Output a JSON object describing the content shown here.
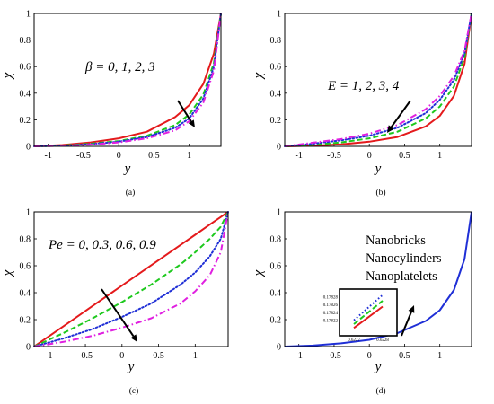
{
  "chart_data": [
    {
      "type": "line",
      "panel_label": "(a)",
      "xlabel": "y",
      "ylabel": "χ",
      "xlim": [
        -1.2,
        1.45
      ],
      "ylim": [
        0,
        1
      ],
      "xticks": [
        -1,
        -0.5,
        0,
        0.5,
        1
      ],
      "yticks": [
        0,
        0.2,
        0.4,
        0.6,
        0.8,
        1
      ],
      "annotation": "β = 0, 1, 2, 3",
      "series": [
        {
          "color": "#e41a1c",
          "dash": "solid",
          "x": [
            -1.2,
            -0.8,
            -0.4,
            0,
            0.4,
            0.8,
            1,
            1.2,
            1.35,
            1.45
          ],
          "y": [
            0,
            0.01,
            0.03,
            0.06,
            0.11,
            0.22,
            0.31,
            0.47,
            0.7,
            1
          ]
        },
        {
          "color": "#1ec91e",
          "dash": "dashed",
          "x": [
            -1.2,
            -0.8,
            -0.4,
            0,
            0.4,
            0.8,
            1,
            1.2,
            1.35,
            1.45
          ],
          "y": [
            0,
            0.006,
            0.02,
            0.04,
            0.08,
            0.16,
            0.24,
            0.39,
            0.63,
            1
          ]
        },
        {
          "color": "#1f2fd6",
          "dash": "dotted",
          "x": [
            -1.2,
            -0.8,
            -0.4,
            0,
            0.4,
            0.8,
            1,
            1.2,
            1.35,
            1.45
          ],
          "y": [
            0,
            0.005,
            0.016,
            0.035,
            0.07,
            0.14,
            0.21,
            0.36,
            0.6,
            1
          ]
        },
        {
          "color": "#e020e0",
          "dash": "dashdot",
          "x": [
            -1.2,
            -0.8,
            -0.4,
            0,
            0.4,
            0.8,
            1,
            1.2,
            1.35,
            1.45
          ],
          "y": [
            0,
            0.004,
            0.013,
            0.03,
            0.06,
            0.12,
            0.19,
            0.33,
            0.57,
            1
          ]
        }
      ]
    },
    {
      "type": "line",
      "panel_label": "(b)",
      "xlabel": "y",
      "ylabel": "χ",
      "xlim": [
        -1.2,
        1.45
      ],
      "ylim": [
        0,
        1
      ],
      "xticks": [
        -1,
        -0.5,
        0,
        0.5,
        1
      ],
      "yticks": [
        0,
        0.2,
        0.4,
        0.6,
        0.8,
        1
      ],
      "annotation": "E = 1, 2, 3, 4",
      "series": [
        {
          "color": "#e41a1c",
          "dash": "solid",
          "x": [
            -1.2,
            -0.8,
            -0.4,
            0,
            0.4,
            0.8,
            1,
            1.2,
            1.35,
            1.45
          ],
          "y": [
            0,
            0.005,
            0.015,
            0.035,
            0.07,
            0.15,
            0.23,
            0.38,
            0.62,
            1
          ]
        },
        {
          "color": "#1ec91e",
          "dash": "dashed",
          "x": [
            -1.2,
            -0.8,
            -0.4,
            0,
            0.4,
            0.8,
            1,
            1.2,
            1.35,
            1.45
          ],
          "y": [
            0,
            0.012,
            0.03,
            0.06,
            0.11,
            0.21,
            0.3,
            0.45,
            0.67,
            1
          ]
        },
        {
          "color": "#1f2fd6",
          "dash": "dotted",
          "x": [
            -1.2,
            -0.8,
            -0.4,
            0,
            0.4,
            0.8,
            1,
            1.2,
            1.35,
            1.45
          ],
          "y": [
            0,
            0.02,
            0.045,
            0.08,
            0.14,
            0.25,
            0.35,
            0.5,
            0.7,
            1
          ]
        },
        {
          "color": "#e020e0",
          "dash": "dashdot",
          "x": [
            -1.2,
            -0.8,
            -0.4,
            0,
            0.4,
            0.8,
            1,
            1.2,
            1.35,
            1.45
          ],
          "y": [
            0,
            0.028,
            0.055,
            0.095,
            0.16,
            0.28,
            0.38,
            0.53,
            0.72,
            1
          ]
        }
      ]
    },
    {
      "type": "line",
      "panel_label": "(c)",
      "xlabel": "y",
      "ylabel": "χ",
      "xlim": [
        -1.2,
        1.45
      ],
      "ylim": [
        0,
        1
      ],
      "xticks": [
        -1,
        -0.5,
        0,
        0.5,
        1
      ],
      "yticks": [
        0,
        0.2,
        0.4,
        0.6,
        0.8,
        1
      ],
      "annotation": "Pe = 0, 0.3, 0.6, 0.9",
      "series": [
        {
          "color": "#e41a1c",
          "dash": "solid",
          "x": [
            -1.2,
            -0.8,
            -0.4,
            0,
            0.4,
            0.8,
            1,
            1.2,
            1.35,
            1.45
          ],
          "y": [
            0,
            0.151,
            0.302,
            0.453,
            0.604,
            0.755,
            0.83,
            0.906,
            0.962,
            1
          ]
        },
        {
          "color": "#1ec91e",
          "dash": "dashed",
          "x": [
            -1.2,
            -0.8,
            -0.4,
            0,
            0.4,
            0.8,
            1,
            1.2,
            1.35,
            1.45
          ],
          "y": [
            0,
            0.1,
            0.21,
            0.33,
            0.46,
            0.61,
            0.7,
            0.8,
            0.89,
            1
          ]
        },
        {
          "color": "#1f2fd6",
          "dash": "dotted",
          "x": [
            -1.2,
            -0.8,
            -0.4,
            0,
            0.4,
            0.8,
            1,
            1.2,
            1.35,
            1.45
          ],
          "y": [
            0,
            0.06,
            0.13,
            0.22,
            0.32,
            0.46,
            0.55,
            0.67,
            0.8,
            1
          ]
        },
        {
          "color": "#e020e0",
          "dash": "dashdot",
          "x": [
            -1.2,
            -0.8,
            -0.4,
            0,
            0.4,
            0.8,
            1,
            1.2,
            1.35,
            1.45
          ],
          "y": [
            0,
            0.035,
            0.08,
            0.14,
            0.21,
            0.32,
            0.41,
            0.53,
            0.7,
            1
          ]
        }
      ]
    },
    {
      "type": "line",
      "panel_label": "(d)",
      "xlabel": "y",
      "ylabel": "χ",
      "xlim": [
        -1.2,
        1.45
      ],
      "ylim": [
        0,
        1
      ],
      "xticks": [
        -1,
        -0.5,
        0,
        0.5,
        1
      ],
      "yticks": [
        0,
        0.2,
        0.4,
        0.6,
        0.8,
        1
      ],
      "legend": [
        "Nanobricks",
        "Nanocylinders",
        "Nanoplatelets"
      ],
      "legend_placement": "top-right",
      "series": [
        {
          "color": "#1f2fd6",
          "dash": "solid",
          "x": [
            -1.2,
            -0.8,
            -0.4,
            0,
            0.4,
            0.8,
            1,
            1.2,
            1.35,
            1.45
          ],
          "y": [
            0,
            0.007,
            0.024,
            0.05,
            0.1,
            0.19,
            0.27,
            0.42,
            0.65,
            1
          ]
        }
      ],
      "inset": {
        "xticks": [
          "0.6227",
          "0.6228"
        ],
        "yticks": [
          "0.17822",
          "0.17824",
          "0.17826",
          "0.17828"
        ],
        "series": [
          {
            "color": "#1f2fd6",
            "dash": "dotted",
            "x": [
              0.6227,
              0.6228
            ],
            "y": [
              0.17822,
              0.178285
            ]
          },
          {
            "color": "#1ec91e",
            "dash": "dashed",
            "x": [
              0.6227,
              0.6228
            ],
            "y": [
              0.17821,
              0.17827
            ]
          },
          {
            "color": "#e41a1c",
            "dash": "solid",
            "x": [
              0.6227,
              0.6228
            ],
            "y": [
              0.1782,
              0.178255
            ]
          }
        ]
      }
    }
  ]
}
